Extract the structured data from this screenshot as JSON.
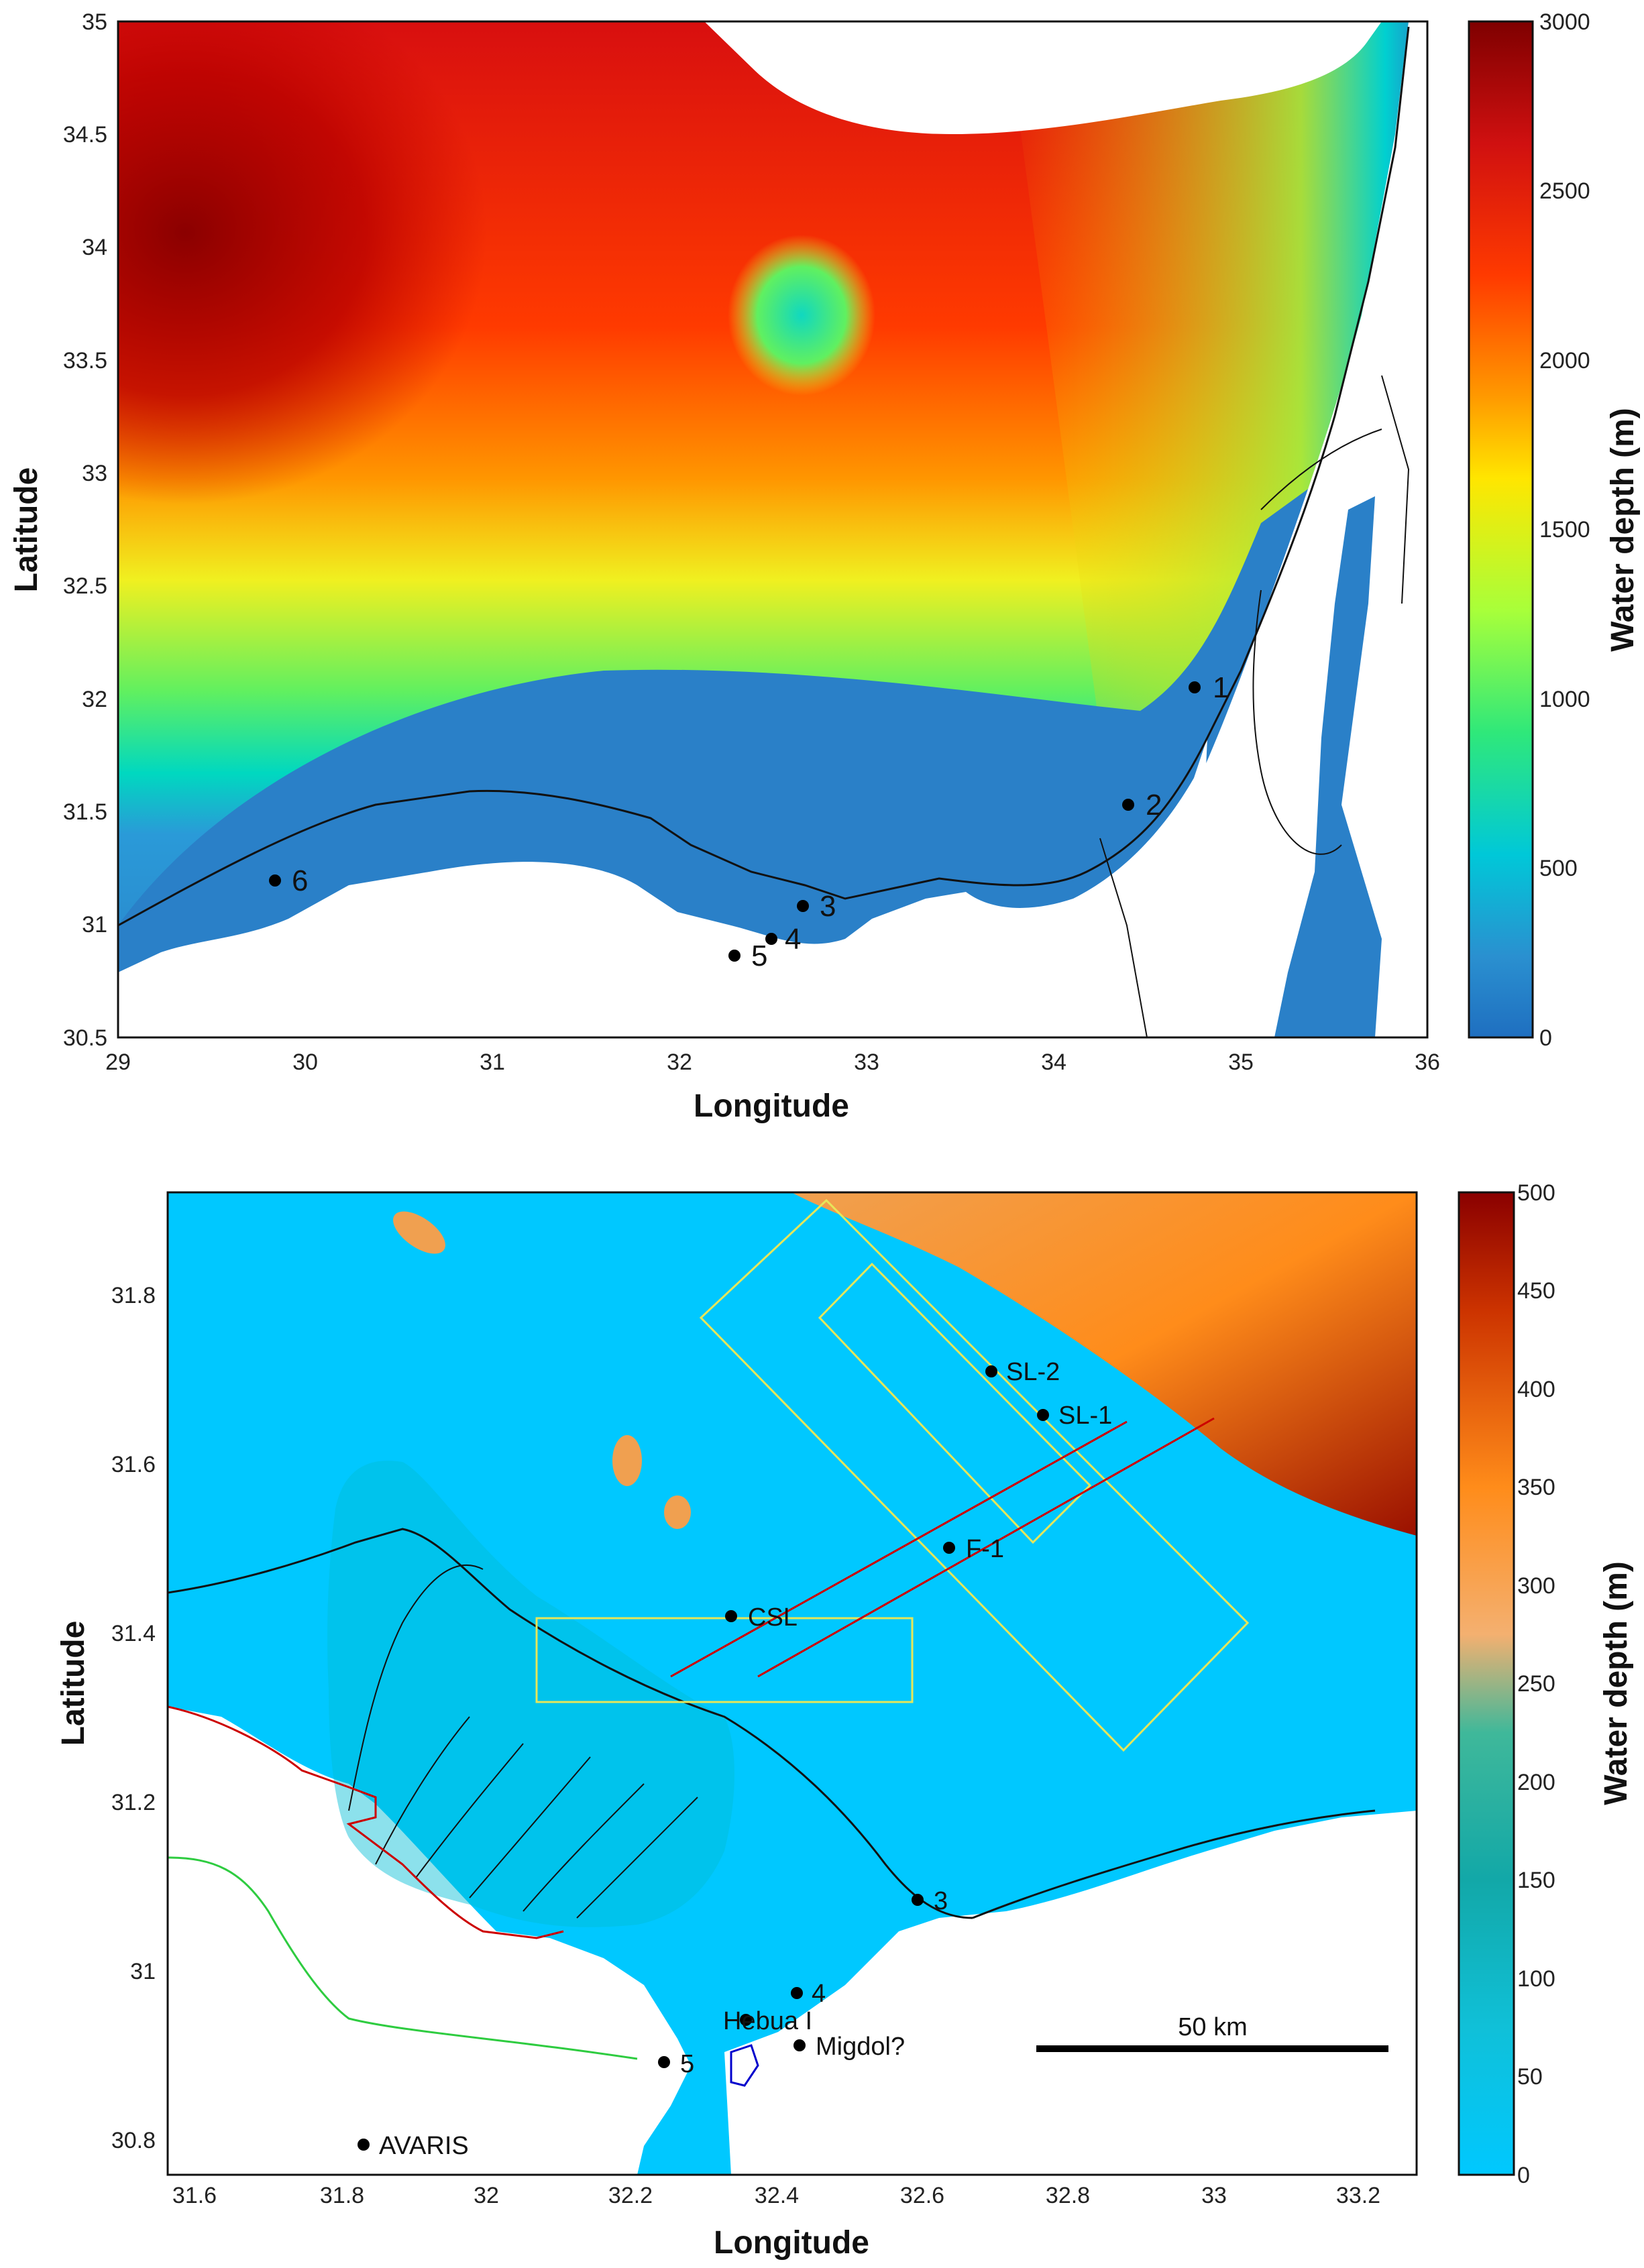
{
  "top_map": {
    "xlabel": "Longitude",
    "ylabel": "Latitude",
    "xticks": [
      "29",
      "30",
      "31",
      "32",
      "33",
      "34",
      "35",
      "36"
    ],
    "yticks": [
      "35",
      "34.5",
      "34",
      "33.5",
      "33",
      "32.5",
      "32",
      "31.5",
      "31",
      "30.5"
    ],
    "colorbar_label": "Water depth (m)",
    "colorbar_ticks": [
      "3000",
      "2500",
      "2000",
      "1500",
      "1000",
      "500",
      "0"
    ],
    "points": [
      {
        "label": "1"
      },
      {
        "label": "2"
      },
      {
        "label": "3"
      },
      {
        "label": "4"
      },
      {
        "label": "5"
      },
      {
        "label": "6"
      }
    ]
  },
  "bottom_map": {
    "xlabel": "Longitude",
    "ylabel": "Latitude",
    "xticks": [
      "31.6",
      "31.8",
      "32",
      "32.2",
      "32.4",
      "32.6",
      "32.8",
      "33",
      "33.2"
    ],
    "yticks": [
      "31.8",
      "31.6",
      "31.4",
      "31.2",
      "31",
      "30.8"
    ],
    "colorbar_label": "Water depth (m)",
    "colorbar_ticks": [
      "500",
      "450",
      "400",
      "350",
      "300",
      "250",
      "200",
      "150",
      "100",
      "50",
      "0"
    ],
    "scale_bar_label": "50 km",
    "points": [
      {
        "label": "SL-2"
      },
      {
        "label": "SL-1"
      },
      {
        "label": "F-1"
      },
      {
        "label": "CSL"
      },
      {
        "label": "3"
      },
      {
        "label": "4"
      },
      {
        "label": "Hebua I"
      },
      {
        "label": "Migdol?"
      },
      {
        "label": "5"
      },
      {
        "label": "AVARIS"
      }
    ]
  },
  "colors": {
    "deep": "#8b0000",
    "shallow": "#00bfff",
    "box": "#e6e65a",
    "transect": "#cc0000",
    "green_line": "#2ecc40"
  }
}
